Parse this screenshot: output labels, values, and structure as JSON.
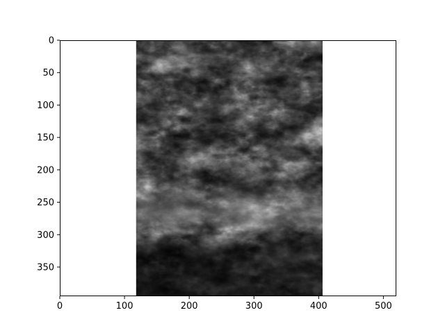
{
  "figure": {
    "description_type": "image plot with axes",
    "colormap": "gray",
    "background": "#ffffff",
    "axes_color": "#000000"
  },
  "axes": {
    "xlim": [
      0,
      520
    ],
    "ylim": [
      395,
      0
    ],
    "xticks": [
      0,
      100,
      200,
      300,
      400,
      500
    ],
    "yticks": [
      0,
      50,
      100,
      150,
      200,
      250,
      300,
      350
    ],
    "grid": false
  },
  "image": {
    "content": "grayscale satellite cloud imagery",
    "extent_x": [
      118,
      406
    ],
    "extent_y": [
      0,
      395
    ]
  }
}
